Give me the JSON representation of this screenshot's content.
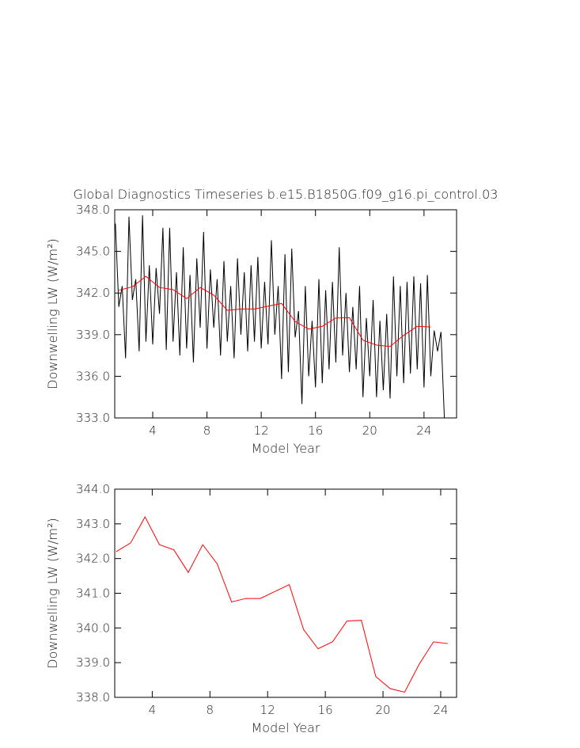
{
  "chart_data": [
    {
      "type": "line",
      "title": "Global Diagnostics Timeseries b.e15.B1850G.f09_g16.pi_control.03",
      "xlabel": "Model Year",
      "ylabel": "Downwelling LW (W/m²)",
      "xlim": [
        1.2,
        26.4
      ],
      "xticks": [
        4,
        8,
        12,
        16,
        20,
        24
      ],
      "ylim": [
        333,
        348
      ],
      "yticks": [
        {
          "value": 333,
          "label": "333.0"
        },
        {
          "value": 336,
          "label": "336.0"
        },
        {
          "value": 339,
          "label": "339.0"
        },
        {
          "value": 342,
          "label": "342.0"
        },
        {
          "value": 345,
          "label": "345.0"
        },
        {
          "value": 348,
          "label": "348.0"
        }
      ],
      "series": [
        {
          "color": "#000000",
          "x": [
            1.25,
            1.5,
            1.75,
            2.0,
            2.25,
            2.5,
            2.75,
            3.0,
            3.25,
            3.5,
            3.75,
            4.0,
            4.25,
            4.5,
            4.75,
            5.0,
            5.25,
            5.5,
            5.75,
            6.0,
            6.25,
            6.5,
            6.75,
            7.0,
            7.25,
            7.5,
            7.75,
            8.0,
            8.25,
            8.5,
            8.75,
            9.0,
            9.25,
            9.5,
            9.75,
            10.0,
            10.25,
            10.5,
            10.75,
            11.0,
            11.25,
            11.5,
            11.75,
            12.0,
            12.25,
            12.5,
            12.75,
            13.0,
            13.25,
            13.5,
            13.75,
            14.0,
            14.25,
            14.5,
            14.75,
            15.0,
            15.25,
            15.5,
            15.75,
            16.0,
            16.25,
            16.5,
            16.75,
            17.0,
            17.25,
            17.5,
            17.75,
            18.0,
            18.25,
            18.5,
            18.75,
            19.0,
            19.25,
            19.5,
            19.75,
            20.0,
            20.25,
            20.5,
            20.75,
            21.0,
            21.25,
            21.5,
            21.75,
            22.0,
            22.25,
            22.5,
            22.75,
            23.0,
            23.25,
            23.5,
            23.75,
            24.0,
            24.25,
            24.5,
            24.75,
            25.0,
            25.25,
            25.5
          ],
          "values": [
            347.0,
            341.0,
            342.5,
            337.3,
            347.5,
            341.5,
            343.0,
            337.8,
            347.6,
            338.5,
            344.0,
            338.3,
            343.8,
            340.5,
            346.7,
            337.9,
            346.7,
            338.5,
            343.5,
            337.5,
            345.3,
            338.0,
            343.3,
            337.0,
            344.5,
            339.5,
            346.4,
            338.0,
            343.7,
            339.5,
            343.0,
            337.5,
            344.3,
            338.5,
            342.5,
            337.3,
            344.5,
            339.0,
            343.5,
            337.8,
            344.0,
            338.5,
            344.6,
            338.0,
            342.8,
            338.3,
            345.8,
            339.0,
            342.5,
            335.8,
            344.8,
            336.3,
            345.2,
            338.8,
            340.7,
            334.0,
            342.5,
            336.0,
            340.0,
            335.2,
            343.0,
            335.5,
            342.2,
            336.5,
            342.8,
            337.0,
            345.3,
            337.5,
            342.0,
            336.3,
            341.0,
            336.5,
            342.5,
            334.5,
            340.2,
            336.0,
            341.5,
            334.5,
            340.0,
            335.0,
            340.5,
            334.4,
            343.2,
            336.0,
            342.5,
            335.5,
            342.8,
            336.2,
            343.2,
            336.5,
            342.7,
            335.2,
            343.3,
            336.0,
            339.3,
            337.8,
            339.2,
            333.0
          ]
        },
        {
          "color": "#ff0000",
          "x": [
            1.5,
            2.5,
            3.5,
            4.5,
            5.5,
            6.5,
            7.5,
            8.5,
            9.5,
            10.5,
            11.5,
            12.5,
            13.5,
            14.5,
            15.5,
            16.5,
            17.5,
            18.5,
            19.5,
            20.5,
            21.5,
            22.5,
            23.5,
            24.5
          ],
          "values": [
            342.2,
            342.45,
            343.2,
            342.4,
            342.25,
            341.6,
            342.4,
            341.85,
            340.75,
            340.85,
            340.85,
            341.05,
            341.25,
            339.95,
            339.4,
            339.6,
            340.2,
            340.22,
            338.6,
            338.25,
            338.15,
            338.95,
            339.6,
            339.55
          ]
        }
      ]
    },
    {
      "type": "line",
      "xlabel": "Model Year",
      "ylabel": "Downwelling LW (W/m²)",
      "xlim": [
        1.4,
        25.1
      ],
      "xticks": [
        4,
        8,
        12,
        16,
        20,
        24
      ],
      "ylim": [
        338,
        344
      ],
      "yticks": [
        {
          "value": 338,
          "label": "338.0"
        },
        {
          "value": 339,
          "label": "339.0"
        },
        {
          "value": 340,
          "label": "340.0"
        },
        {
          "value": 341,
          "label": "341.0"
        },
        {
          "value": 342,
          "label": "342.0"
        },
        {
          "value": 343,
          "label": "343.0"
        },
        {
          "value": 344,
          "label": "344.0"
        }
      ],
      "series": [
        {
          "color": "#ff0000",
          "x": [
            1.5,
            2.5,
            3.5,
            4.5,
            5.5,
            6.5,
            7.5,
            8.5,
            9.5,
            10.5,
            11.5,
            12.5,
            13.5,
            14.5,
            15.5,
            16.5,
            17.5,
            18.5,
            19.5,
            20.5,
            21.5,
            22.5,
            23.5,
            24.5
          ],
          "values": [
            342.2,
            342.45,
            343.2,
            342.4,
            342.25,
            341.6,
            342.4,
            341.85,
            340.75,
            340.85,
            340.85,
            341.05,
            341.25,
            339.95,
            339.4,
            339.6,
            340.2,
            340.22,
            338.6,
            338.25,
            338.15,
            338.95,
            339.6,
            339.55
          ]
        }
      ]
    }
  ]
}
